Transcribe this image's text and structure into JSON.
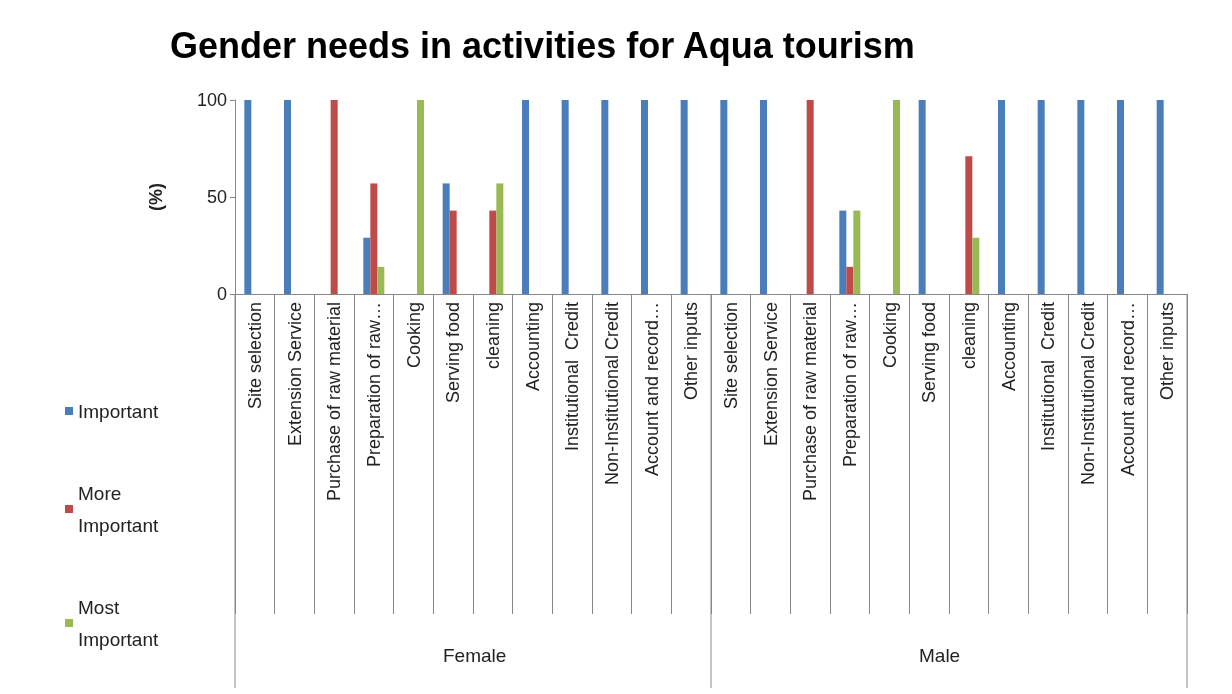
{
  "chart_data": {
    "type": "bar",
    "title": "Gender needs in activities for Aqua tourism",
    "ylabel": "(%)",
    "categories": [
      "Site selection",
      "Extension Service",
      "Purchase of raw material",
      "Preparation of raw…",
      "Cooking",
      "Serving food",
      "cleaning",
      "Accounting",
      "Institutional  Credit",
      "Non-Institutional Credit",
      "Account and record…",
      "Other inputs",
      "Site selection",
      "Extension Service",
      "Purchase of raw material",
      "Preparation of raw…",
      "Cooking",
      "Serving food",
      "cleaning",
      "Accounting",
      "Institutional  Credit",
      "Non-Institutional Credit",
      "Account and record…",
      "Other inputs"
    ],
    "series": [
      {
        "name": "Important",
        "color": "#4a7ebb",
        "values": [
          100,
          100,
          0,
          29,
          0,
          57,
          0,
          100,
          100,
          100,
          100,
          100,
          100,
          100,
          0,
          43,
          0,
          100,
          0,
          100,
          100,
          100,
          100,
          100
        ]
      },
      {
        "name": "More Important",
        "color": "#be4b48",
        "values": [
          0,
          0,
          100,
          57,
          0,
          43,
          43,
          0,
          0,
          0,
          0,
          0,
          0,
          0,
          100,
          14,
          0,
          0,
          71,
          0,
          0,
          0,
          0,
          0
        ]
      },
      {
        "name": "Most Important",
        "color": "#98b954",
        "values": [
          0,
          0,
          0,
          14,
          100,
          0,
          57,
          0,
          0,
          0,
          0,
          0,
          0,
          0,
          0,
          43,
          100,
          0,
          29,
          0,
          0,
          0,
          0,
          0
        ]
      }
    ],
    "annotations": [
      "Female",
      "Male"
    ],
    "ylim": [
      0,
      100
    ],
    "yticks": [
      0,
      50,
      100
    ],
    "grid": false,
    "legend": "left"
  }
}
